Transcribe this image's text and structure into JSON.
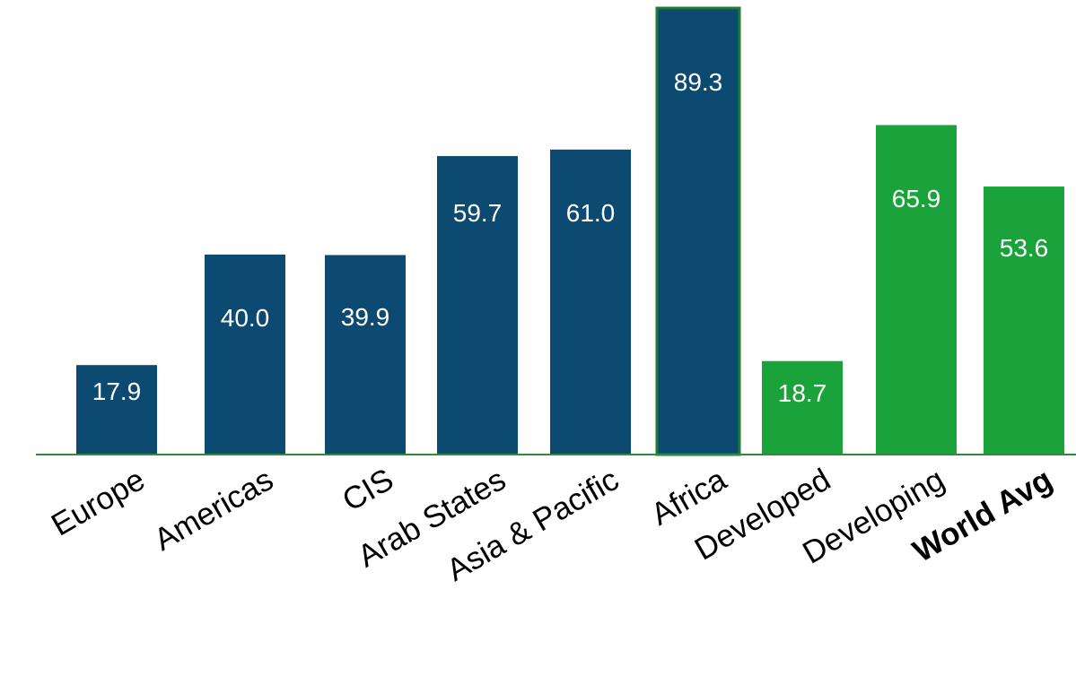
{
  "chart_data": {
    "type": "bar",
    "title": "",
    "xlabel": "",
    "ylabel": "",
    "ylim": [
      0,
      89.3
    ],
    "grid": false,
    "legend": "none",
    "categories": [
      "Europe",
      "Americas",
      "CIS",
      "Arab States",
      "Asia & Pacific",
      "Africa",
      "Developed",
      "Developing",
      "World Avg"
    ],
    "values": [
      17.9,
      40.0,
      39.9,
      59.7,
      61.0,
      89.3,
      18.7,
      65.9,
      53.6
    ],
    "value_labels": [
      "17.9",
      "40.0",
      "39.9",
      "59.7",
      "61.0",
      "89.3",
      "18.7",
      "65.9",
      "53.6"
    ],
    "bar_colors": [
      "#0d4a72",
      "#0d4a72",
      "#0d4a72",
      "#0d4a72",
      "#0d4a72",
      "#0d4a72",
      "#1aa33a",
      "#1aa33a",
      "#1aa33a"
    ],
    "highlighted_category": "Africa",
    "bold_category": "World Avg",
    "colors": {
      "region": "#0d4a72",
      "group": "#1aa33a",
      "highlight_outline": "#1f7a34",
      "baseline": "#2e8b3e",
      "value_text": "#ffffff",
      "category_text": "#000000"
    }
  }
}
